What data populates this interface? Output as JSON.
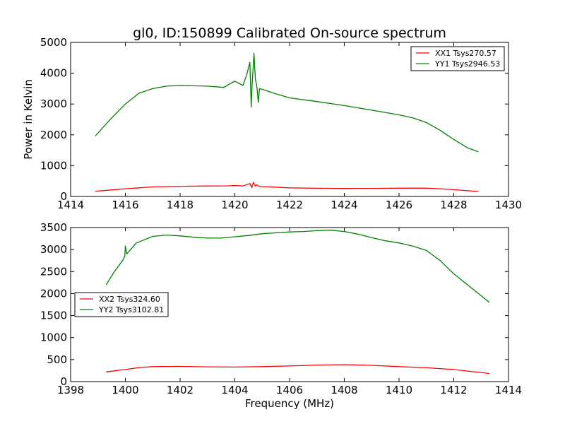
{
  "chart_data": [
    {
      "type": "line",
      "title": "gl0, ID:150899 Calibrated On-source spectrum",
      "xlabel": "",
      "ylabel": "Power in Kelvin",
      "xlim": [
        1414,
        1430
      ],
      "ylim": [
        0,
        5000
      ],
      "xticks": [
        1414,
        1416,
        1418,
        1420,
        1422,
        1424,
        1426,
        1428,
        1430
      ],
      "yticks": [
        0,
        1000,
        2000,
        3000,
        4000,
        5000
      ],
      "grid": false,
      "legend_position": "top-right",
      "series": [
        {
          "name": "XX1 Tsys270.57",
          "color": "#ff0000",
          "x": [
            1414.9,
            1415.5,
            1416,
            1416.5,
            1417,
            1418,
            1419,
            1419.8,
            1420.0,
            1420.3,
            1420.55,
            1420.62,
            1420.68,
            1420.75,
            1420.8,
            1420.9,
            1421,
            1422,
            1423,
            1424,
            1425,
            1426,
            1426.5,
            1427,
            1427.5,
            1428,
            1428.5,
            1428.9
          ],
          "y": [
            170,
            210,
            250,
            280,
            310,
            330,
            340,
            345,
            355,
            340,
            420,
            290,
            460,
            330,
            380,
            320,
            320,
            280,
            265,
            260,
            262,
            268,
            270,
            268,
            250,
            220,
            185,
            160
          ]
        },
        {
          "name": "YY1 Tsys2946.53",
          "color": "#008000",
          "x": [
            1414.9,
            1415.5,
            1416,
            1416.5,
            1417,
            1417.5,
            1418,
            1419,
            1419.6,
            1419.8,
            1420.0,
            1420.3,
            1420.45,
            1420.55,
            1420.6,
            1420.63,
            1420.7,
            1420.75,
            1420.8,
            1420.86,
            1420.9,
            1421,
            1421.5,
            1422,
            1423,
            1424,
            1425,
            1426,
            1426.5,
            1427,
            1427.5,
            1428,
            1428.5,
            1428.9
          ],
          "y": [
            1960,
            2550,
            3000,
            3350,
            3500,
            3580,
            3600,
            3580,
            3540,
            3650,
            3740,
            3600,
            4000,
            4350,
            2900,
            3600,
            4650,
            3800,
            3600,
            3050,
            3500,
            3480,
            3330,
            3200,
            3080,
            2950,
            2800,
            2650,
            2550,
            2400,
            2150,
            1850,
            1580,
            1450
          ]
        }
      ]
    },
    {
      "type": "line",
      "title": "",
      "xlabel": "Frequency (MHz)",
      "ylabel": "",
      "xlim": [
        1398,
        1414
      ],
      "ylim": [
        0,
        3500
      ],
      "xticks": [
        1398,
        1400,
        1402,
        1404,
        1406,
        1408,
        1410,
        1412,
        1414
      ],
      "yticks": [
        0,
        500,
        1000,
        1500,
        2000,
        2500,
        3000,
        3500
      ],
      "grid": false,
      "legend_position": "center-left",
      "series": [
        {
          "name": "XX2 Tsys324.60",
          "color": "#ff0000",
          "x": [
            1399.3,
            1400,
            1400.5,
            1401,
            1402,
            1403,
            1404,
            1405,
            1406,
            1407,
            1408,
            1409,
            1410,
            1411,
            1412,
            1412.5,
            1413.3
          ],
          "y": [
            220,
            275,
            320,
            340,
            345,
            335,
            330,
            340,
            355,
            375,
            385,
            370,
            340,
            315,
            275,
            240,
            185
          ]
        },
        {
          "name": "YY2 Tsys3102.81",
          "color": "#008000",
          "x": [
            1399.3,
            1399.6,
            1399.9,
            1399.98,
            1400.0,
            1400.05,
            1400.4,
            1401,
            1401.5,
            1402,
            1402.5,
            1403,
            1403.5,
            1404,
            1404.5,
            1405,
            1405.5,
            1406,
            1406.5,
            1407,
            1407.5,
            1408,
            1408.5,
            1409,
            1409.5,
            1410,
            1410.5,
            1411,
            1411.5,
            1412,
            1412.5,
            1413,
            1413.3
          ],
          "y": [
            2200,
            2500,
            2750,
            2850,
            3080,
            2900,
            3150,
            3300,
            3330,
            3310,
            3280,
            3260,
            3260,
            3290,
            3320,
            3360,
            3380,
            3400,
            3410,
            3430,
            3440,
            3410,
            3350,
            3270,
            3200,
            3150,
            3080,
            2980,
            2750,
            2450,
            2200,
            1950,
            1800
          ]
        }
      ]
    }
  ]
}
